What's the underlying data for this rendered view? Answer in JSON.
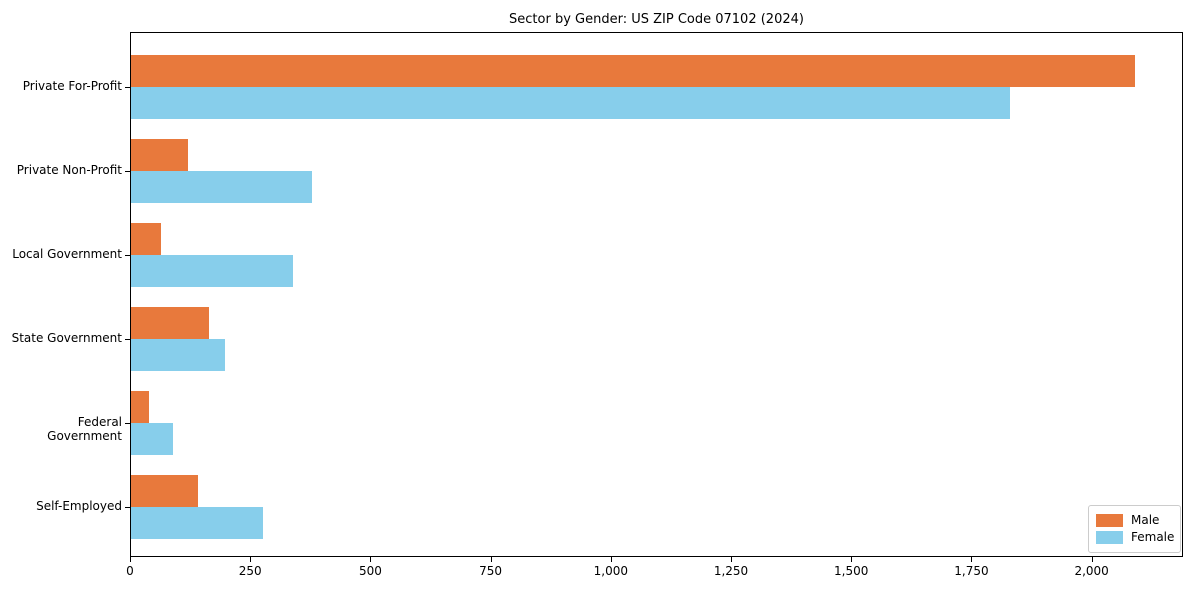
{
  "title": "Sector by Gender: US ZIP Code 07102 (2024)",
  "colors": {
    "male": "#E8793C",
    "female": "#87CEEB",
    "axis": "#000000",
    "legend_border": "#cccccc",
    "background": "#ffffff"
  },
  "chart_data": {
    "type": "bar",
    "orientation": "horizontal",
    "title": "Sector by Gender: US ZIP Code 07102 (2024)",
    "categories": [
      "Private For-Profit",
      "Private Non-Profit",
      "Local Government",
      "State Government",
      "Federal Government",
      "Self-Employed"
    ],
    "series": [
      {
        "name": "Male",
        "color": "#E8793C",
        "values": [
          2090,
          120,
          65,
          165,
          40,
          142
        ]
      },
      {
        "name": "Female",
        "color": "#87CEEB",
        "values": [
          1830,
          378,
          338,
          198,
          90,
          276
        ]
      }
    ],
    "xlabel": "",
    "ylabel": "",
    "xlim": [
      0,
      2190
    ],
    "x_ticks": [
      0,
      250,
      500,
      750,
      1000,
      1250,
      1500,
      1750,
      2000
    ],
    "x_tick_labels": [
      "0",
      "250",
      "500",
      "750",
      "1,000",
      "1,250",
      "1,500",
      "1,750",
      "2,000"
    ],
    "grid": false,
    "legend_position": "lower right",
    "bars_inverted_y": true
  }
}
